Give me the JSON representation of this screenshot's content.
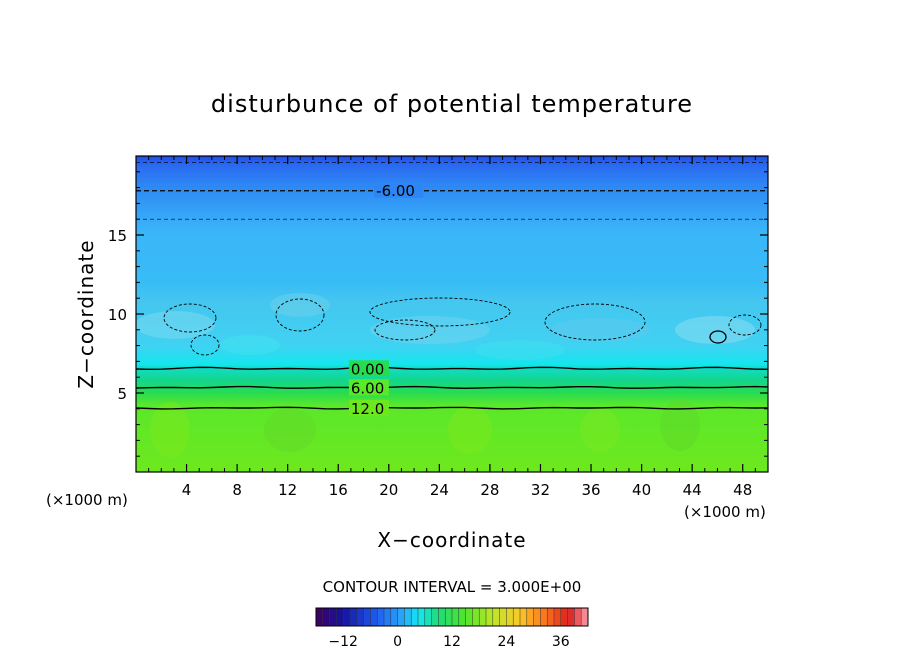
{
  "chart_data": {
    "type": "heatmap",
    "title": "disturbunce of potential temperature",
    "xlabel": "X−coordinate",
    "ylabel": "Z−coordinate",
    "x_unit": "(×1000 m)",
    "z_unit": "(×1000 m)",
    "xlim": [
      0,
      50
    ],
    "ylim": [
      0,
      20
    ],
    "x_ticks": [
      4,
      8,
      12,
      16,
      20,
      24,
      28,
      32,
      36,
      40,
      44,
      48
    ],
    "y_ticks": [
      5,
      10,
      15
    ],
    "contour_interval_text": "CONTOUR INTERVAL = 3.000E+00",
    "contour_labels": [
      {
        "text": "-6.00",
        "x": 19,
        "z": 17.8
      },
      {
        "text": "0.00",
        "x": 17,
        "z": 6.5
      },
      {
        "text": "6.00",
        "x": 17,
        "z": 5.3
      },
      {
        "text": "12.0",
        "x": 17,
        "z": 4.0
      }
    ],
    "colorbar": {
      "range": [
        -18,
        42
      ],
      "ticks": [
        -12,
        0,
        12,
        24,
        36
      ]
    }
  }
}
